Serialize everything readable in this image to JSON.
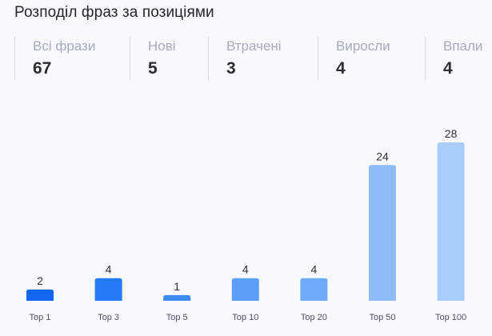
{
  "title": "Розподіл фраз за позиціями",
  "stats": [
    {
      "label": "Всі фрази",
      "value": "67"
    },
    {
      "label": "Нові",
      "value": "5"
    },
    {
      "label": "Втрачені",
      "value": "3"
    },
    {
      "label": "Виросли",
      "value": "4"
    },
    {
      "label": "Впали",
      "value": "4"
    }
  ],
  "chart_data": {
    "type": "bar",
    "categories": [
      "Top 1",
      "Top 3",
      "Top 5",
      "Top 10",
      "Top 20",
      "Top 50",
      "Top 100"
    ],
    "values": [
      2,
      4,
      1,
      4,
      4,
      24,
      28
    ],
    "colors": [
      "#1266f1",
      "#2479f4",
      "#3f8cf6",
      "#5b9ef7",
      "#6eaaf8",
      "#8fbdfa",
      "#a9cdfb"
    ],
    "ylim": [
      0,
      28
    ],
    "grid": false,
    "legend": "none"
  }
}
